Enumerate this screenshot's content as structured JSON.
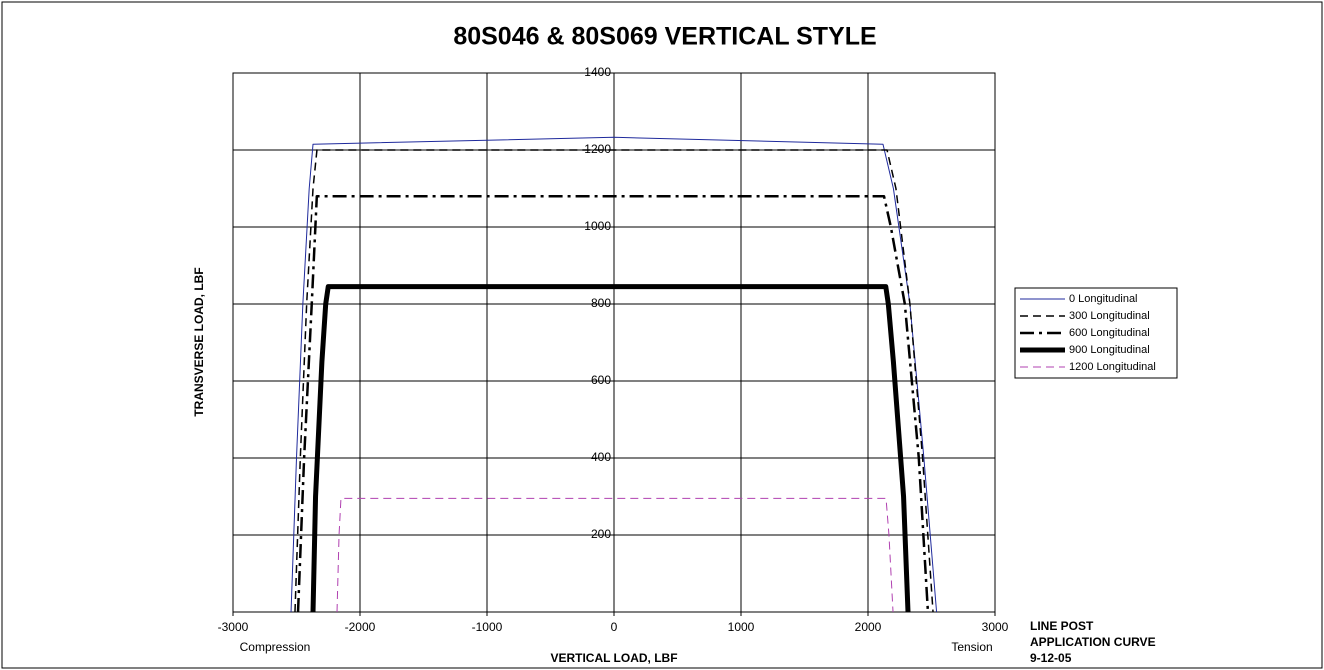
{
  "chart_data": {
    "type": "line",
    "title": "80S046 & 80S069 VERTICAL STYLE",
    "xlabel": "VERTICAL LOAD, LBF",
    "ylabel": "TRANSVERSE LOAD, LBF",
    "xlim": [
      -3000,
      3000
    ],
    "ylim": [
      0,
      1400
    ],
    "xticks": [
      -3000,
      -2000,
      -1000,
      0,
      1000,
      2000,
      3000
    ],
    "yticks": [
      200,
      400,
      600,
      800,
      1000,
      1200,
      1400
    ],
    "grid": true,
    "legend": "right",
    "annotations": [
      "Compression",
      "Tension",
      "LINE POST",
      "APPLICATION CURVE",
      "9-12-05"
    ],
    "series": [
      {
        "name": "0 Longitudinal",
        "color": "#1f2a9c",
        "style": "solid",
        "width": 1,
        "x": [
          -2543,
          -2500,
          -2450,
          -2400,
          -2370,
          0,
          2118,
          2200,
          2330,
          2440,
          2540
        ],
        "values": [
          0,
          400,
          800,
          1100,
          1215,
          1233,
          1215,
          1100,
          800,
          400,
          0
        ]
      },
      {
        "name": "300 Longitudinal",
        "color": "#000000",
        "style": "dashed",
        "width": 1.5,
        "x": [
          -2512,
          -2470,
          -2420,
          -2370,
          -2339,
          2150,
          2220,
          2330,
          2430,
          2512
        ],
        "values": [
          0,
          400,
          800,
          1100,
          1200,
          1200,
          1100,
          800,
          400,
          0
        ]
      },
      {
        "name": "600 Longitudinal",
        "color": "#000000",
        "style": "dashdot",
        "width": 2.5,
        "x": [
          -2488,
          -2440,
          -2380,
          -2340,
          2126,
          2180,
          2290,
          2400,
          2472
        ],
        "values": [
          0,
          400,
          800,
          1080,
          1080,
          1000,
          800,
          400,
          0
        ]
      },
      {
        "name": "900 Longitudinal",
        "color": "#000000",
        "style": "solid",
        "width": 5,
        "x": [
          -2370,
          -2350,
          -2300,
          -2270,
          -2250,
          2140,
          2160,
          2200,
          2280,
          2315
        ],
        "values": [
          0,
          300,
          650,
          800,
          845,
          845,
          800,
          650,
          300,
          0
        ]
      },
      {
        "name": "1200 Longitudinal",
        "color": "#b040b0",
        "style": "dashed",
        "width": 1,
        "x": [
          -2181,
          -2165,
          -2150,
          2142,
          2165,
          2197
        ],
        "values": [
          0,
          200,
          295,
          295,
          200,
          0
        ]
      }
    ]
  }
}
